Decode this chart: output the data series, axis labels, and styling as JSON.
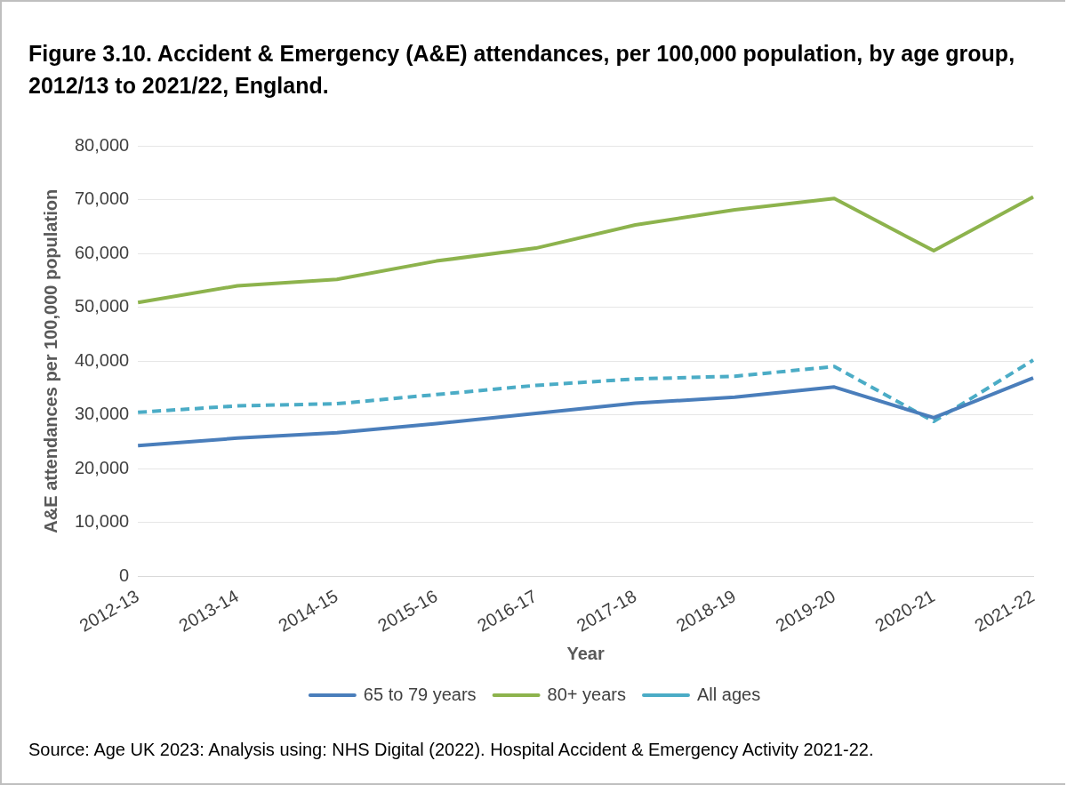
{
  "chart_data": {
    "type": "line",
    "title": "Figure 3.10. Accident & Emergency (A&E) attendances, per 100,000 population, by age group, 2012/13 to 2021/22, England.",
    "xlabel": "Year",
    "ylabel": "A&E attendances per 100,000 population",
    "categories": [
      "2012-13",
      "2013-14",
      "2014-15",
      "2015-16",
      "2016-17",
      "2017-18",
      "2018-19",
      "2019-20",
      "2020-21",
      "2021-22"
    ],
    "series": [
      {
        "name": "65 to 79 years",
        "color": "#4a7ebb",
        "line_style": "solid",
        "values": [
          24300,
          25700,
          26700,
          28400,
          30300,
          32200,
          33300,
          35200,
          29500,
          36900
        ]
      },
      {
        "name": "80+ years",
        "color": "#8db34d",
        "line_style": "solid",
        "values": [
          50900,
          54000,
          55200,
          58600,
          61000,
          65300,
          68100,
          70200,
          60500,
          70500
        ]
      },
      {
        "name": "All ages",
        "color": "#4bacc6",
        "line_style": "dashed",
        "values": [
          30500,
          31700,
          32100,
          33800,
          35500,
          36700,
          37200,
          39000,
          28800,
          40200
        ]
      }
    ],
    "ylim": [
      0,
      80000
    ],
    "yticks": [
      0,
      {
        "value": 10000,
        "label": "10,000"
      },
      {
        "value": 20000,
        "label": "20,000"
      },
      {
        "value": 30000,
        "label": "30,000"
      },
      {
        "value": 40000,
        "label": "40,000"
      },
      {
        "value": 50000,
        "label": "50,000"
      },
      {
        "value": 60000,
        "label": "60,000"
      },
      {
        "value": 70000,
        "label": "70,000"
      },
      {
        "value": 80000,
        "label": "80,000"
      }
    ],
    "grid": "y",
    "legend": "bottom",
    "marker": "none",
    "annotations": [
      "Source: Age UK 2023: Analysis using: NHS Digital (2022). Hospital Accident & Emergency Activity 2021-22."
    ]
  }
}
